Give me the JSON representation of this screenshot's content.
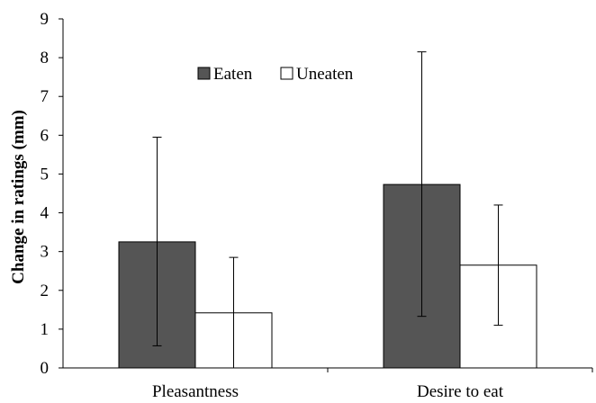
{
  "chart_data": {
    "type": "bar",
    "categories": [
      "Pleasantness",
      "Desire to eat"
    ],
    "series": [
      {
        "name": "Eaten",
        "values": [
          3.25,
          4.73
        ],
        "error_low": [
          0.57,
          1.33
        ],
        "error_high": [
          5.95,
          8.15
        ],
        "color": "#555555"
      },
      {
        "name": "Uneaten",
        "values": [
          1.42,
          2.65
        ],
        "error_low": [
          0.0,
          1.1
        ],
        "error_high": [
          2.85,
          4.2
        ],
        "color": "#ffffff"
      }
    ],
    "ylabel": "Change in ratings (mm)",
    "ylim": [
      0,
      9
    ],
    "yticks": [
      "0",
      "1",
      "2",
      "3",
      "4",
      "5",
      "6",
      "7",
      "8",
      "9"
    ],
    "grid": false,
    "legend": "top-center"
  }
}
